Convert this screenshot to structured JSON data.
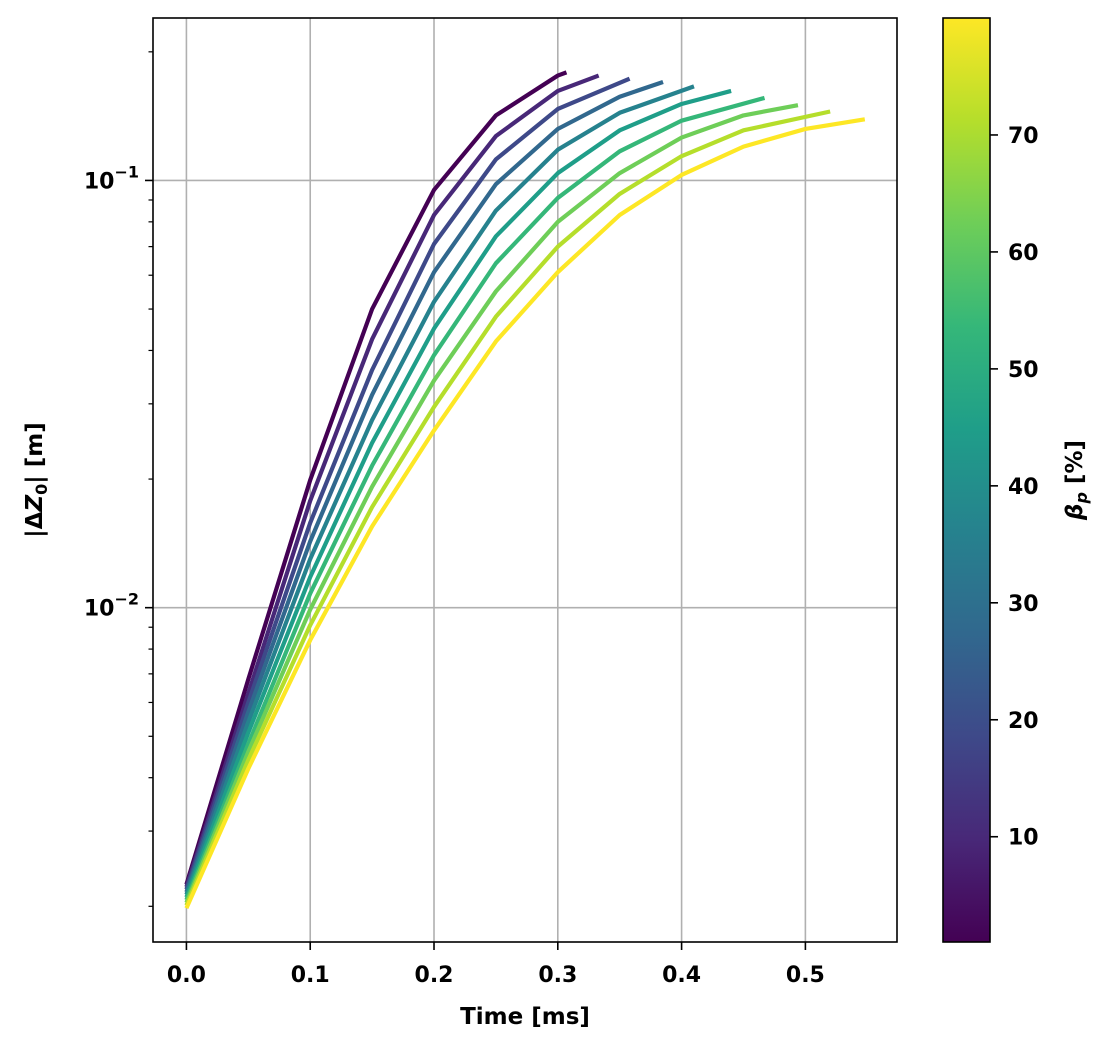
{
  "chart_data": {
    "type": "line",
    "xlabel": "Time [ms]",
    "ylabel": "|ΔZ₀| [m]",
    "yscale": "log",
    "xlim": [
      -0.027,
      0.574
    ],
    "ylim": [
      0.00165,
      0.24
    ],
    "grid": true,
    "x_ticks": [
      0.0,
      0.1,
      0.2,
      0.3,
      0.4,
      0.5
    ],
    "x_tick_labels": [
      "0.0",
      "0.1",
      "0.2",
      "0.3",
      "0.4",
      "0.5"
    ],
    "y_major_ticks": [
      0.01,
      0.1
    ],
    "y_tick_labels": [
      {
        "base": "10",
        "exp": "−2"
      },
      {
        "base": "10",
        "exp": "−1"
      }
    ],
    "colorbar": {
      "label_symbol": "β",
      "label_subscript": "p",
      "label_unit": "[%]",
      "range": [
        1,
        80
      ],
      "ticks": [
        10,
        20,
        30,
        40,
        50,
        60,
        70
      ],
      "colors": [
        "#440154",
        "#482878",
        "#3e4989",
        "#31688e",
        "#26828e",
        "#1f9e89",
        "#35b779",
        "#6ece58",
        "#b5de2b",
        "#fde725"
      ]
    },
    "series": [
      {
        "beta_p": 1,
        "x": [
          0.0,
          0.05,
          0.1,
          0.15,
          0.2,
          0.25,
          0.3,
          0.307
        ],
        "y": [
          0.00225,
          0.0068,
          0.0199,
          0.05,
          0.095,
          0.142,
          0.176,
          0.179
        ]
      },
      {
        "beta_p": 9.8,
        "x": [
          0.0,
          0.05,
          0.1,
          0.15,
          0.2,
          0.25,
          0.3,
          0.333
        ],
        "y": [
          0.00222,
          0.0063,
          0.0178,
          0.0425,
          0.083,
          0.127,
          0.162,
          0.176
        ]
      },
      {
        "beta_p": 18.6,
        "x": [
          0.0,
          0.05,
          0.1,
          0.15,
          0.2,
          0.25,
          0.3,
          0.358
        ],
        "y": [
          0.00219,
          0.006,
          0.0158,
          0.036,
          0.071,
          0.112,
          0.147,
          0.173
        ]
      },
      {
        "beta_p": 27.3,
        "x": [
          0.0,
          0.05,
          0.1,
          0.15,
          0.2,
          0.25,
          0.3,
          0.35,
          0.385
        ],
        "y": [
          0.00216,
          0.0057,
          0.0143,
          0.0315,
          0.061,
          0.098,
          0.132,
          0.157,
          0.17
        ]
      },
      {
        "beta_p": 36.1,
        "x": [
          0.0,
          0.05,
          0.1,
          0.15,
          0.2,
          0.25,
          0.3,
          0.35,
          0.41
        ],
        "y": [
          0.00213,
          0.0054,
          0.013,
          0.0275,
          0.052,
          0.085,
          0.118,
          0.144,
          0.166
        ]
      },
      {
        "beta_p": 44.9,
        "x": [
          0.0,
          0.05,
          0.1,
          0.15,
          0.2,
          0.25,
          0.3,
          0.35,
          0.4,
          0.44
        ],
        "y": [
          0.0021,
          0.0051,
          0.0118,
          0.0243,
          0.045,
          0.074,
          0.104,
          0.131,
          0.151,
          0.162
        ]
      },
      {
        "beta_p": 53.7,
        "x": [
          0.0,
          0.05,
          0.1,
          0.15,
          0.2,
          0.25,
          0.3,
          0.35,
          0.4,
          0.467
        ],
        "y": [
          0.00207,
          0.0048,
          0.0108,
          0.0215,
          0.039,
          0.064,
          0.091,
          0.117,
          0.138,
          0.156
        ]
      },
      {
        "beta_p": 62.4,
        "x": [
          0.0,
          0.05,
          0.1,
          0.15,
          0.2,
          0.25,
          0.3,
          0.35,
          0.4,
          0.45,
          0.494
        ],
        "y": [
          0.00204,
          0.0046,
          0.0099,
          0.0192,
          0.034,
          0.055,
          0.08,
          0.104,
          0.126,
          0.142,
          0.15
        ]
      },
      {
        "beta_p": 71.2,
        "x": [
          0.0,
          0.05,
          0.1,
          0.15,
          0.2,
          0.25,
          0.3,
          0.35,
          0.4,
          0.45,
          0.52
        ],
        "y": [
          0.00201,
          0.0044,
          0.0091,
          0.0172,
          0.0295,
          0.048,
          0.07,
          0.093,
          0.114,
          0.131,
          0.145
        ]
      },
      {
        "beta_p": 80,
        "x": [
          0.0,
          0.05,
          0.1,
          0.15,
          0.2,
          0.25,
          0.3,
          0.35,
          0.4,
          0.45,
          0.5,
          0.548
        ],
        "y": [
          0.00198,
          0.0042,
          0.0084,
          0.0155,
          0.026,
          0.042,
          0.061,
          0.083,
          0.103,
          0.12,
          0.132,
          0.139
        ]
      }
    ]
  }
}
